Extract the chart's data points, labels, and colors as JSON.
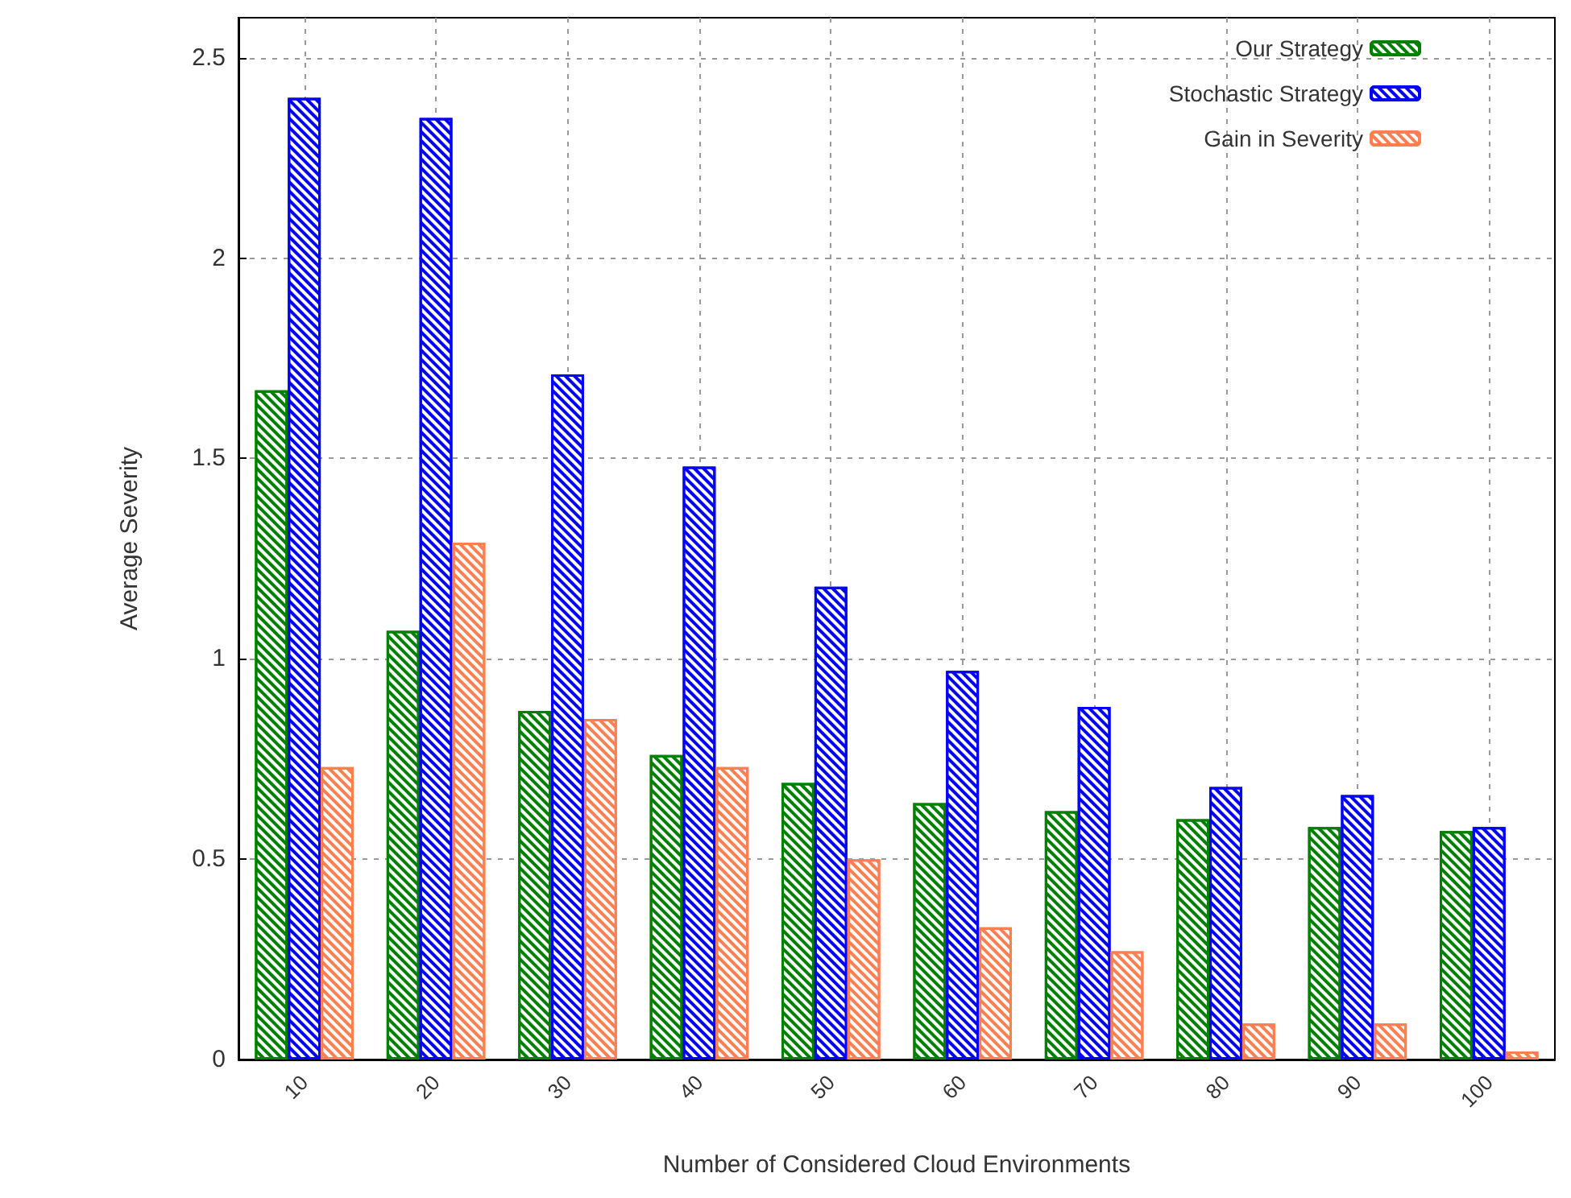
{
  "chart_data": {
    "type": "bar",
    "xlabel": "Number of Considered Cloud Environments",
    "ylabel": "Average Severity",
    "categories": [
      "10",
      "20",
      "30",
      "40",
      "50",
      "60",
      "70",
      "80",
      "90",
      "100"
    ],
    "series": [
      {
        "name": "Our Strategy",
        "color": "#008000",
        "values": [
          1.67,
          1.07,
          0.87,
          0.76,
          0.69,
          0.64,
          0.62,
          0.6,
          0.58,
          0.57
        ]
      },
      {
        "name": "Stochastic Strategy",
        "color": "#0000ff",
        "values": [
          2.4,
          2.35,
          1.71,
          1.48,
          1.18,
          0.97,
          0.88,
          0.68,
          0.66,
          0.58
        ]
      },
      {
        "name": "Gain in Severity",
        "color": "#ff7f50",
        "values": [
          0.73,
          1.29,
          0.85,
          0.73,
          0.5,
          0.33,
          0.27,
          0.09,
          0.09,
          0.02
        ]
      }
    ],
    "ylim": [
      0,
      2.6
    ],
    "yticks": [
      0,
      0.5,
      1,
      1.5,
      2,
      2.5
    ],
    "grid": true,
    "legend": "top right"
  }
}
